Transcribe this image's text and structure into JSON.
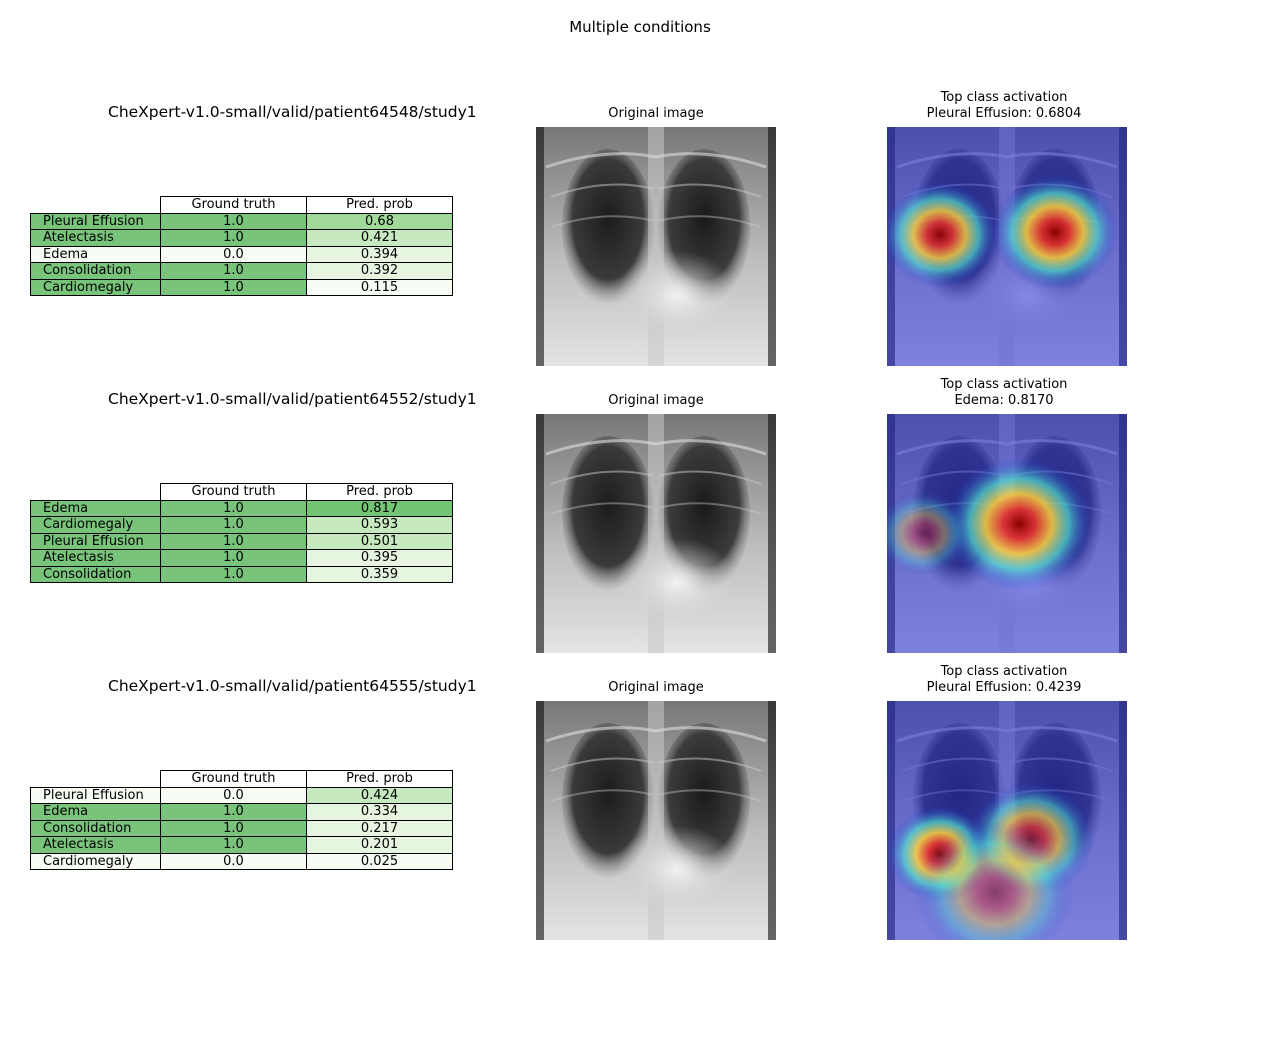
{
  "figure": {
    "title": "Multiple conditions"
  },
  "table_headers": {
    "ground_truth": "Ground truth",
    "pred_prob": "Pred. prob"
  },
  "colors": {
    "gt_positive": "#78c47a",
    "gt_negative": "#f7fcf5",
    "prob_scale": [
      "#f7fcf5",
      "#e5f5e0",
      "#c7e9c0",
      "#a1d99b",
      "#74c476"
    ]
  },
  "chart_data": {
    "type": "table",
    "studies": [
      {
        "study_path": "CheXpert-v1.0-small/valid/patient64548/study1",
        "original_title": "Original image",
        "activation_title": "Top class activation",
        "activation_label": "Pleural Effusion: 0.6804",
        "hotspots": [
          {
            "cx": 0.22,
            "cy": 0.45,
            "r": 0.22,
            "intensity": 0.95
          },
          {
            "cx": 0.7,
            "cy": 0.44,
            "r": 0.24,
            "intensity": 1.0
          }
        ],
        "rows": [
          {
            "condition": "Pleural Effusion",
            "ground_truth": "1.0",
            "gt_value": 1,
            "pred_prob": "0.68",
            "prob_value": 0.68
          },
          {
            "condition": "Atelectasis",
            "ground_truth": "1.0",
            "gt_value": 1,
            "pred_prob": "0.421",
            "prob_value": 0.421
          },
          {
            "condition": "Edema",
            "ground_truth": "0.0",
            "gt_value": 0,
            "pred_prob": "0.394",
            "prob_value": 0.394
          },
          {
            "condition": "Consolidation",
            "ground_truth": "1.0",
            "gt_value": 1,
            "pred_prob": "0.392",
            "prob_value": 0.392
          },
          {
            "condition": "Cardiomegaly",
            "ground_truth": "1.0",
            "gt_value": 1,
            "pred_prob": "0.115",
            "prob_value": 0.115
          }
        ]
      },
      {
        "study_path": "CheXpert-v1.0-small/valid/patient64552/study1",
        "original_title": "Original image",
        "activation_title": "Top class activation",
        "activation_label": "Edema: 0.8170",
        "hotspots": [
          {
            "cx": 0.55,
            "cy": 0.46,
            "r": 0.28,
            "intensity": 1.0
          },
          {
            "cx": 0.15,
            "cy": 0.5,
            "r": 0.18,
            "intensity": 0.45
          }
        ],
        "rows": [
          {
            "condition": "Edema",
            "ground_truth": "1.0",
            "gt_value": 1,
            "pred_prob": "0.817",
            "prob_value": 0.817
          },
          {
            "condition": "Cardiomegaly",
            "ground_truth": "1.0",
            "gt_value": 1,
            "pred_prob": "0.593",
            "prob_value": 0.593
          },
          {
            "condition": "Pleural Effusion",
            "ground_truth": "1.0",
            "gt_value": 1,
            "pred_prob": "0.501",
            "prob_value": 0.501
          },
          {
            "condition": "Atelectasis",
            "ground_truth": "1.0",
            "gt_value": 1,
            "pred_prob": "0.395",
            "prob_value": 0.395
          },
          {
            "condition": "Consolidation",
            "ground_truth": "1.0",
            "gt_value": 1,
            "pred_prob": "0.359",
            "prob_value": 0.359
          }
        ]
      },
      {
        "study_path": "CheXpert-v1.0-small/valid/patient64555/study1",
        "original_title": "Original image",
        "activation_title": "Top class activation",
        "activation_label": "Pleural Effusion: 0.4239",
        "hotspots": [
          {
            "cx": 0.22,
            "cy": 0.64,
            "r": 0.2,
            "intensity": 1.0
          },
          {
            "cx": 0.6,
            "cy": 0.58,
            "r": 0.24,
            "intensity": 0.8
          },
          {
            "cx": 0.45,
            "cy": 0.8,
            "r": 0.3,
            "intensity": 0.5
          }
        ],
        "rows": [
          {
            "condition": "Pleural Effusion",
            "ground_truth": "0.0",
            "gt_value": 0,
            "pred_prob": "0.424",
            "prob_value": 0.424
          },
          {
            "condition": "Edema",
            "ground_truth": "1.0",
            "gt_value": 1,
            "pred_prob": "0.334",
            "prob_value": 0.334
          },
          {
            "condition": "Consolidation",
            "ground_truth": "1.0",
            "gt_value": 1,
            "pred_prob": "0.217",
            "prob_value": 0.217
          },
          {
            "condition": "Atelectasis",
            "ground_truth": "1.0",
            "gt_value": 1,
            "pred_prob": "0.201",
            "prob_value": 0.201
          },
          {
            "condition": "Cardiomegaly",
            "ground_truth": "0.0",
            "gt_value": 0,
            "pred_prob": "0.025",
            "prob_value": 0.025
          }
        ]
      }
    ]
  }
}
